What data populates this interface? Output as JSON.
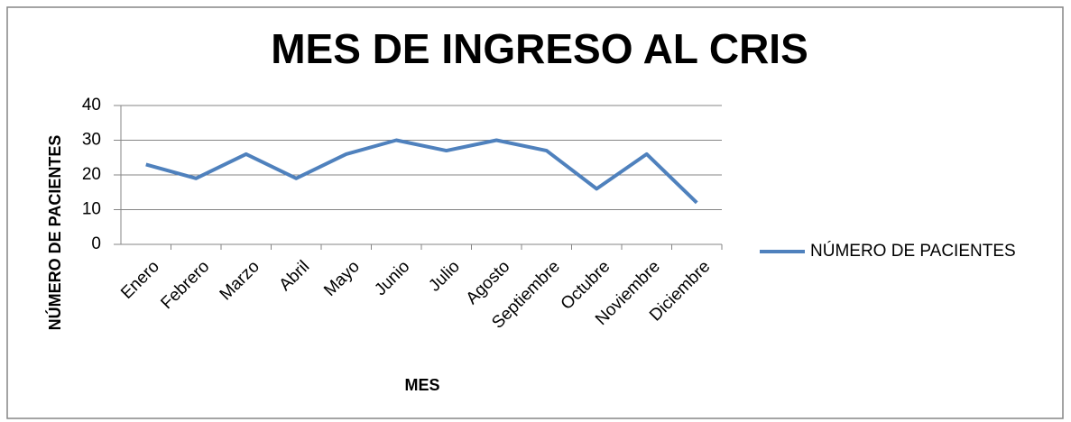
{
  "chart_data": {
    "type": "line",
    "title": "MES DE INGRESO AL CRIS",
    "x_label": "MES",
    "y_label": "NÚMERO DE PACIENTES",
    "categories": [
      "Enero",
      "Febrero",
      "Marzo",
      "Abril",
      "Mayo",
      "Junio",
      "Julio",
      "Agosto",
      "Septiembre",
      "Octubre",
      "Noviembre",
      "Diciembre"
    ],
    "series": [
      {
        "name": "NÚMERO DE PACIENTES",
        "color": "#4f81bd",
        "values": [
          23,
          19,
          26,
          19,
          26,
          30,
          27,
          30,
          27,
          16,
          26,
          12
        ]
      }
    ],
    "ylim": [
      0,
      40
    ],
    "yticks": [
      0,
      10,
      20,
      30,
      40
    ],
    "grid": true,
    "legend": "right"
  }
}
